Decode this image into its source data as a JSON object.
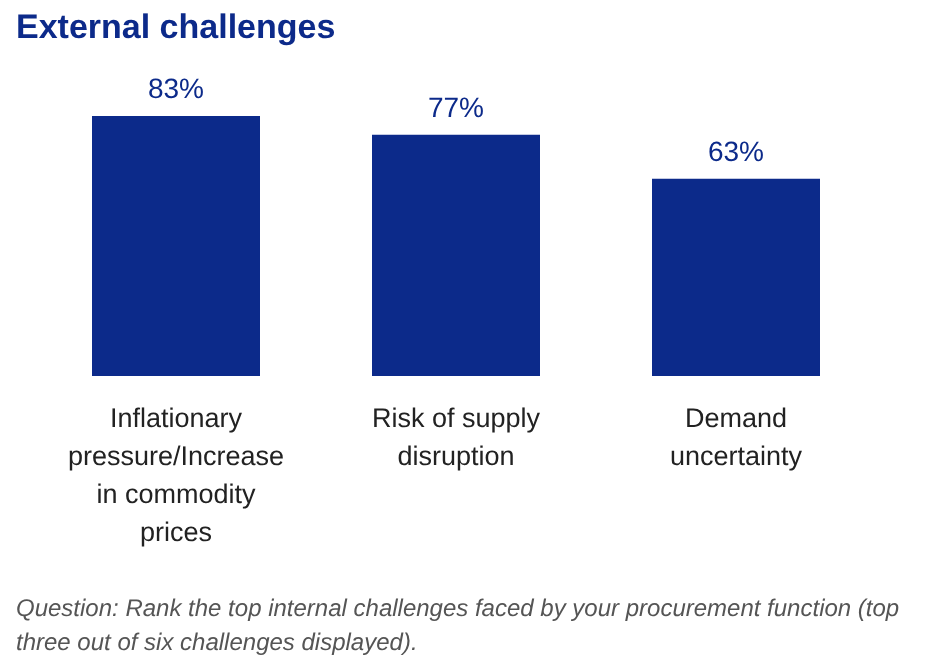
{
  "chart_data": {
    "type": "bar",
    "title": "External challenges",
    "categories": [
      "Inflationary pressure/Increase in commodity prices",
      "Risk of supply disruption",
      "Demand uncertainty"
    ],
    "values": [
      83,
      77,
      63
    ],
    "color": "#0c2a8a",
    "value_labels": [
      "83%",
      "77%",
      "63%"
    ],
    "annotations": [
      "Question: Rank the top internal challenges faced by your procurement function (top three out of six challenges displayed)."
    ]
  }
}
